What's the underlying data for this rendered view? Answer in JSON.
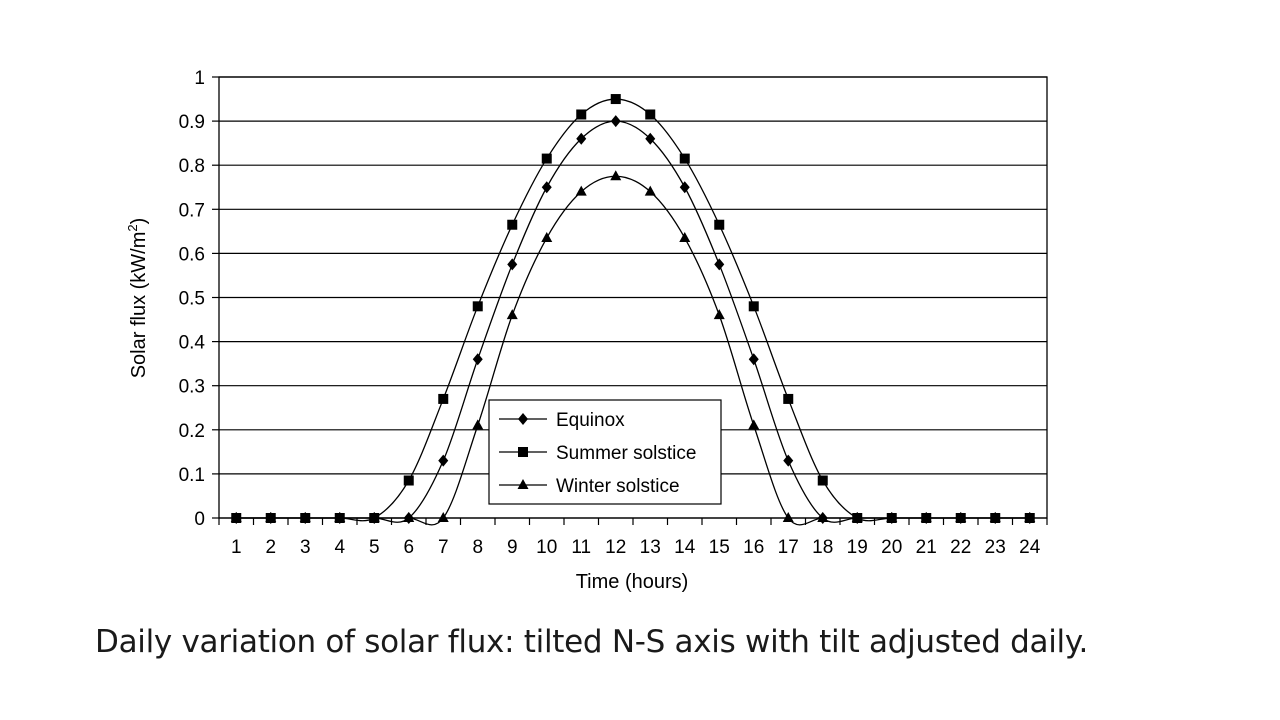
{
  "caption": "Daily variation of solar flux: tilted N-S axis with tilt adjusted daily.",
  "chart_data": {
    "type": "line",
    "xlabel": "Time (hours)",
    "ylabel_main": "Solar flux (kW/m",
    "ylabel_sup": "2",
    "ylabel_tail": ")",
    "ylim": [
      0,
      1
    ],
    "xlim": [
      0.5,
      24.5
    ],
    "yticks": [
      "0",
      "0.1",
      "0.2",
      "0.3",
      "0.4",
      "0.5",
      "0.6",
      "0.7",
      "0.8",
      "0.9",
      "1"
    ],
    "xticks": [
      "1",
      "2",
      "3",
      "4",
      "5",
      "6",
      "7",
      "8",
      "9",
      "10",
      "11",
      "12",
      "13",
      "14",
      "15",
      "16",
      "17",
      "18",
      "19",
      "20",
      "21",
      "22",
      "23",
      "24"
    ],
    "grid": "horizontal",
    "legend_position": "lower-center",
    "series": [
      {
        "name": "Equinox",
        "marker": "diamond",
        "x": [
          1,
          2,
          3,
          4,
          5,
          6,
          7,
          8,
          9,
          10,
          11,
          12,
          13,
          14,
          15,
          16,
          17,
          18,
          19,
          20,
          21,
          22,
          23,
          24
        ],
        "y": [
          0,
          0,
          0,
          0,
          0,
          0,
          0.13,
          0.36,
          0.575,
          0.75,
          0.86,
          0.9,
          0.86,
          0.75,
          0.575,
          0.36,
          0.13,
          0,
          0,
          0,
          0,
          0,
          0,
          0
        ]
      },
      {
        "name": "Summer solstice",
        "marker": "square",
        "x": [
          1,
          2,
          3,
          4,
          5,
          6,
          7,
          8,
          9,
          10,
          11,
          12,
          13,
          14,
          15,
          16,
          17,
          18,
          19,
          20,
          21,
          22,
          23,
          24
        ],
        "y": [
          0,
          0,
          0,
          0,
          0,
          0.085,
          0.27,
          0.48,
          0.665,
          0.815,
          0.915,
          0.95,
          0.915,
          0.815,
          0.665,
          0.48,
          0.27,
          0.085,
          0,
          0,
          0,
          0,
          0,
          0
        ]
      },
      {
        "name": "Winter solstice",
        "marker": "triangle",
        "x": [
          1,
          2,
          3,
          4,
          5,
          6,
          7,
          8,
          9,
          10,
          11,
          12,
          13,
          14,
          15,
          16,
          17,
          18,
          19,
          20,
          21,
          22,
          23,
          24
        ],
        "y": [
          0,
          0,
          0,
          0,
          0,
          0,
          0,
          0.21,
          0.46,
          0.635,
          0.74,
          0.775,
          0.74,
          0.635,
          0.46,
          0.21,
          0,
          0,
          0,
          0,
          0,
          0,
          0,
          0
        ]
      }
    ]
  }
}
